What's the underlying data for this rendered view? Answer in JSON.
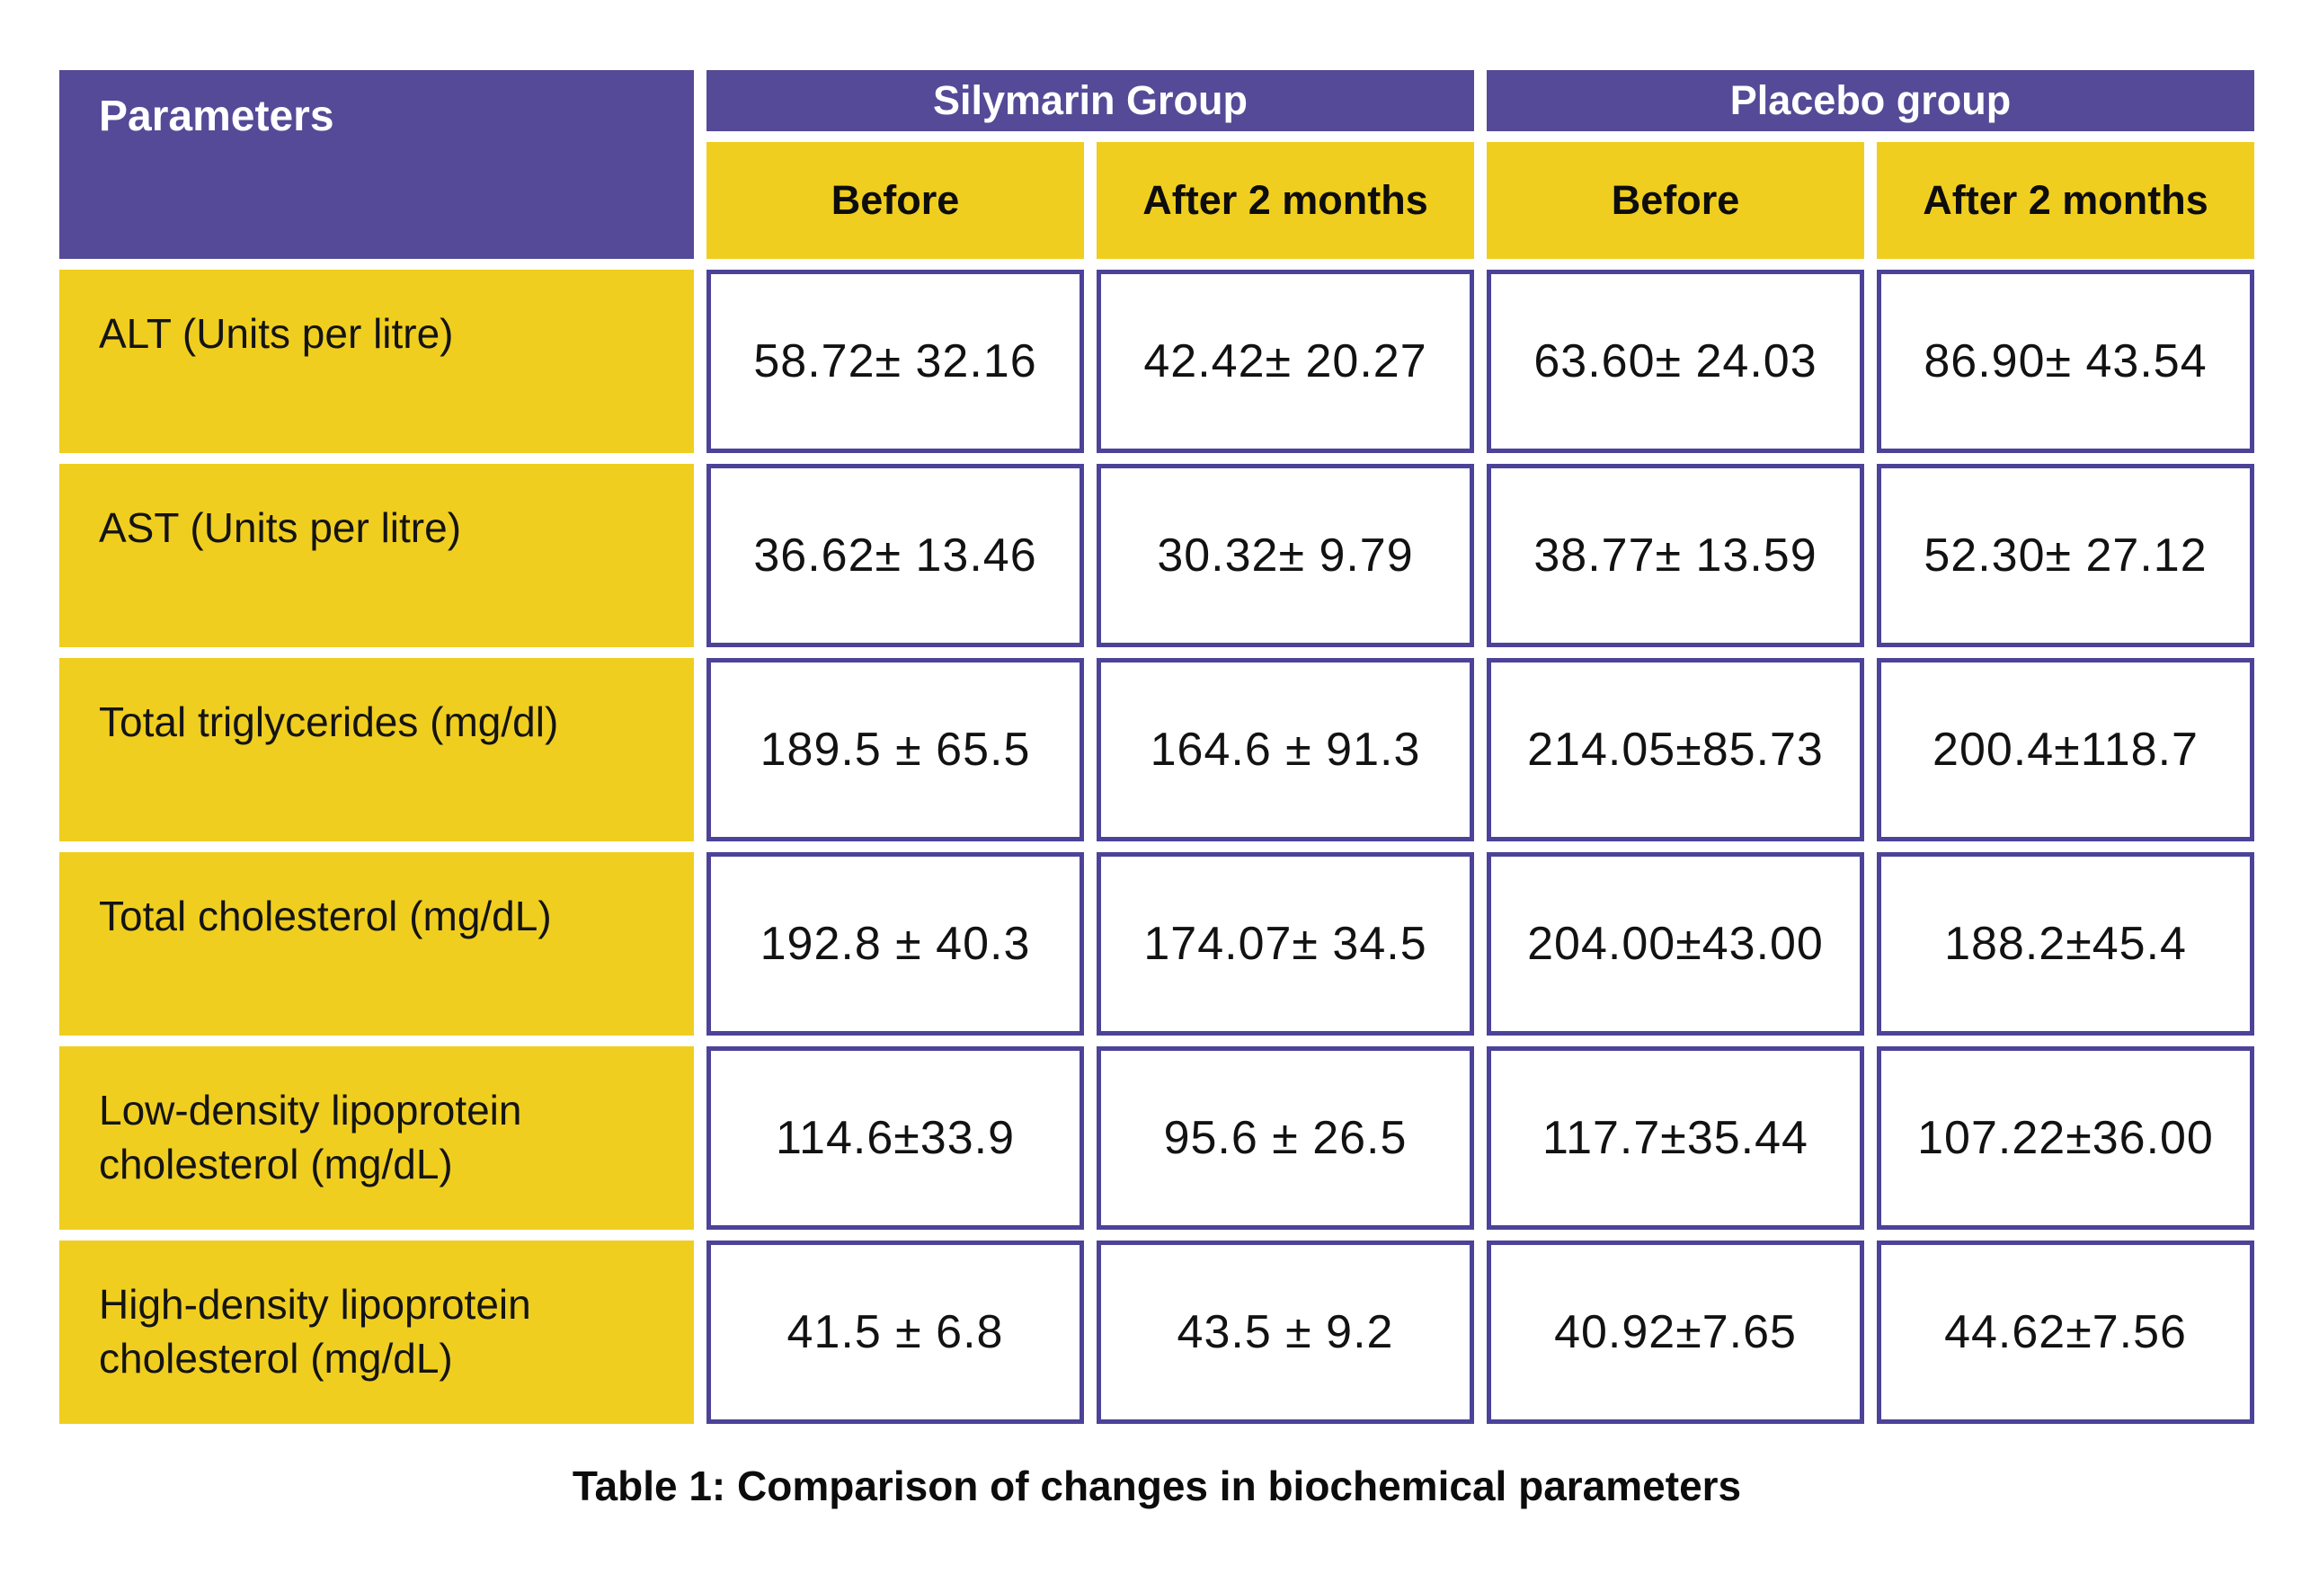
{
  "colors": {
    "purple": "#554A97",
    "yellow": "#F0CE1F",
    "border": "#4C4399"
  },
  "chart_data": {
    "type": "table",
    "title": "Table 1: Comparison of changes in biochemical parameters",
    "corner_header": "Parameters",
    "column_groups": [
      {
        "label": "Silymarin Group",
        "span": 2
      },
      {
        "label": "Placebo group",
        "span": 2
      }
    ],
    "columns": [
      "Before",
      "After 2 months",
      "Before",
      "After 2 months"
    ],
    "rows": [
      {
        "parameter": "ALT (Units per litre)",
        "values": [
          "58.72± 32.16",
          "42.42± 20.27",
          "63.60± 24.03",
          "86.90± 43.54"
        ]
      },
      {
        "parameter": "AST (Units per litre)",
        "values": [
          "36.62± 13.46",
          "30.32± 9.79",
          "38.77± 13.59",
          "52.30± 27.12"
        ]
      },
      {
        "parameter": "Total triglycerides (mg/dl)",
        "values": [
          "189.5 ± 65.5",
          "164.6 ± 91.3",
          "214.05±85.73",
          "200.4±118.7"
        ]
      },
      {
        "parameter": "Total cholesterol (mg/dL)",
        "values": [
          "192.8 ± 40.3",
          "174.07± 34.5",
          "204.00±43.00",
          "188.2±45.4"
        ]
      },
      {
        "parameter": "Low-density lipoprotein cholesterol (mg/dL)",
        "values": [
          "114.6±33.9",
          "95.6 ± 26.5",
          "117.7±35.44",
          "107.22±36.00"
        ]
      },
      {
        "parameter": "High-density lipoprotein cholesterol (mg/dL)",
        "values": [
          "41.5 ± 6.8",
          "43.5 ± 9.2",
          "40.92±7.65",
          "44.62±7.56"
        ]
      }
    ]
  }
}
